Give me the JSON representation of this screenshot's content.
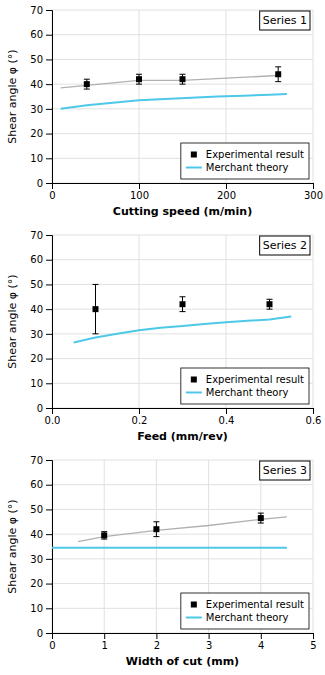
{
  "chart_data": [
    {
      "type": "line",
      "annotations": [
        "Series 1"
      ],
      "x_label": "Cutting speed (m/min)",
      "y_label": "Shear angle φ (°)",
      "xlim": [
        0,
        300
      ],
      "ylim": [
        0,
        70
      ],
      "xticks": [
        0,
        100,
        200,
        300
      ],
      "yticks": [
        0,
        10,
        20,
        30,
        40,
        50,
        60,
        70
      ],
      "grid": true,
      "legend": "lower right",
      "series": [
        {
          "name": "Experimental result",
          "type": "scatter",
          "marker": "square",
          "color": "#000000",
          "x": [
            40,
            100,
            150,
            260
          ],
          "values": [
            40,
            42,
            42,
            44
          ],
          "errors": [
            2,
            2,
            2,
            3
          ]
        },
        {
          "name": "Merchant theory",
          "type": "line",
          "line_style": "solid",
          "color": "#4DC8E8",
          "x": [
            10,
            40,
            70,
            100,
            130,
            160,
            190,
            220,
            250,
            270
          ],
          "values": [
            30.0,
            31.5,
            32.5,
            33.5,
            34.0,
            34.5,
            35.0,
            35.3,
            35.7,
            36.0
          ]
        },
        {
          "type": "line",
          "line_style": "solid",
          "color": "#b0b0b0",
          "x": [
            10,
            40,
            100,
            150,
            260
          ],
          "values": [
            38.5,
            39.5,
            41.5,
            41.5,
            43.5
          ]
        }
      ]
    },
    {
      "type": "line",
      "annotations": [
        "Series 2"
      ],
      "x_label": "Feed (mm/rev)",
      "y_label": "Shear angle φ (°)",
      "xlim": [
        0,
        0.6
      ],
      "ylim": [
        0,
        70
      ],
      "xticks": [
        {
          "value": 0,
          "label": "0.0"
        },
        0.2,
        0.4,
        0.6
      ],
      "yticks": [
        0,
        10,
        20,
        30,
        40,
        50,
        60,
        70
      ],
      "grid": true,
      "legend": "lower right",
      "series": [
        {
          "name": "Experimental result",
          "type": "scatter",
          "marker": "square",
          "color": "#000000",
          "x": [
            0.1,
            0.3,
            0.5
          ],
          "values": [
            40,
            42,
            42
          ],
          "errors": [
            10,
            3,
            2
          ]
        },
        {
          "name": "Merchant theory",
          "type": "line",
          "line_style": "solid",
          "color": "#4DC8E8",
          "x": [
            0.05,
            0.1,
            0.15,
            0.2,
            0.25,
            0.3,
            0.35,
            0.4,
            0.45,
            0.5,
            0.55
          ],
          "values": [
            26.5,
            28.5,
            30.0,
            31.5,
            32.5,
            33.2,
            34.0,
            34.7,
            35.3,
            35.8,
            37.0
          ]
        }
      ]
    },
    {
      "type": "line",
      "annotations": [
        "Series 3"
      ],
      "x_label": "Width of cut (mm)",
      "y_label": "Shear angle φ (°)",
      "xlim": [
        0,
        5
      ],
      "ylim": [
        0,
        70
      ],
      "xticks": [
        0,
        1,
        2,
        3,
        4,
        5
      ],
      "yticks": [
        0,
        10,
        20,
        30,
        40,
        50,
        60,
        70
      ],
      "grid": true,
      "legend": "lower right",
      "series": [
        {
          "name": "Experimental result",
          "type": "scatter",
          "marker": "square",
          "color": "#000000",
          "x": [
            1,
            2,
            4
          ],
          "values": [
            39.5,
            42,
            46.5
          ],
          "errors": [
            1.5,
            3,
            2
          ]
        },
        {
          "name": "Merchant theory",
          "type": "line",
          "line_style": "solid",
          "color": "#4DC8E8",
          "x": [
            0.0,
            1,
            2,
            3,
            4,
            4.5
          ],
          "values": [
            34.5,
            34.5,
            34.5,
            34.5,
            34.5,
            34.5
          ]
        },
        {
          "type": "line",
          "line_style": "solid",
          "color": "#b0b0b0",
          "x": [
            0.5,
            1,
            2,
            3,
            4,
            4.5
          ],
          "values": [
            37.0,
            39.0,
            41.5,
            43.5,
            46.0,
            47.0
          ]
        }
      ]
    }
  ]
}
